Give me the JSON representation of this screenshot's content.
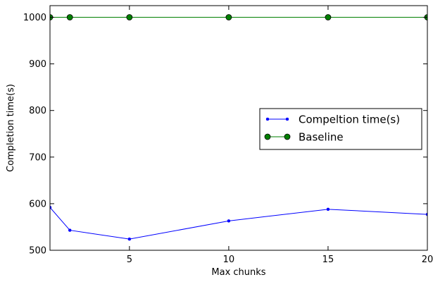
{
  "chart_data": {
    "type": "line",
    "title": "",
    "xlabel": "Max chunks",
    "ylabel": "Completion time(s)",
    "xlim": [
      1,
      20
    ],
    "ylim": [
      500,
      1025
    ],
    "xticks": [
      5,
      10,
      15,
      20
    ],
    "yticks": [
      500,
      600,
      700,
      800,
      900,
      1000
    ],
    "x": [
      1,
      2,
      5,
      10,
      15,
      20
    ],
    "series": [
      {
        "name": "Compeltion time(s)",
        "values": [
          592,
          543,
          524,
          563,
          588,
          577
        ],
        "color": "#0000ff",
        "marker": "small-dot"
      },
      {
        "name": "Baseline",
        "values": [
          1000,
          1000,
          1000,
          1000,
          1000,
          1000
        ],
        "color": "#007f00",
        "marker": "large-circle"
      }
    ],
    "legend_position": "center-right",
    "grid": false
  }
}
